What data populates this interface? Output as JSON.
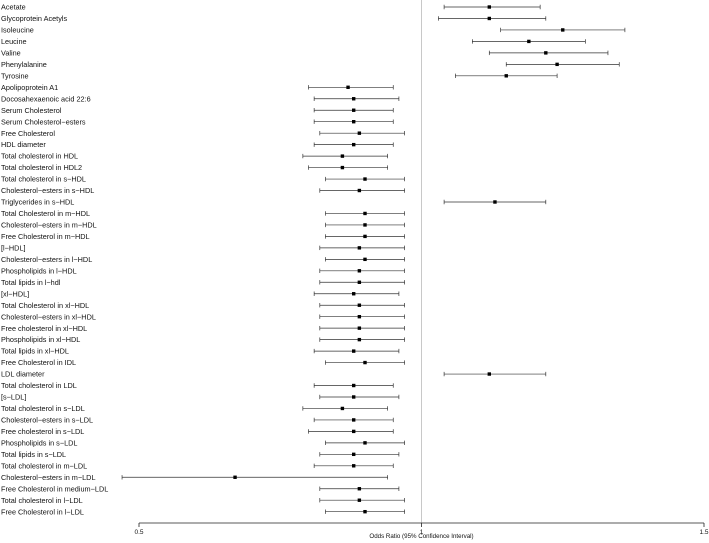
{
  "chart_data": {
    "type": "forest",
    "xlabel": "Odds Ratio (95% Confidence Interval)",
    "xlim": [
      0.5,
      1.5
    ],
    "xticks": [
      "0.5",
      "1",
      "1.5"
    ],
    "reference_line": 1,
    "rows": [
      {
        "label": "Acetate",
        "or": 1.12,
        "lo": 1.04,
        "hi": 1.21
      },
      {
        "label": "Glycoprotein Acetyls",
        "or": 1.12,
        "lo": 1.03,
        "hi": 1.22
      },
      {
        "label": "Isoleucine",
        "or": 1.25,
        "lo": 1.14,
        "hi": 1.36
      },
      {
        "label": "Leucine",
        "or": 1.19,
        "lo": 1.09,
        "hi": 1.29
      },
      {
        "label": "Valine",
        "or": 1.22,
        "lo": 1.12,
        "hi": 1.33
      },
      {
        "label": "Phenylalanine",
        "or": 1.24,
        "lo": 1.15,
        "hi": 1.35
      },
      {
        "label": "Tyrosine",
        "or": 1.15,
        "lo": 1.06,
        "hi": 1.24
      },
      {
        "label": "Apolipoprotein A1",
        "or": 0.87,
        "lo": 0.8,
        "hi": 0.95
      },
      {
        "label": "Docosahexaenoic acid 22:6",
        "or": 0.88,
        "lo": 0.81,
        "hi": 0.96
      },
      {
        "label": "Serum Cholesterol",
        "or": 0.88,
        "lo": 0.81,
        "hi": 0.95
      },
      {
        "label": "Serum Cholesterol−esters",
        "or": 0.88,
        "lo": 0.81,
        "hi": 0.95
      },
      {
        "label": "Free Cholesterol",
        "or": 0.89,
        "lo": 0.82,
        "hi": 0.97
      },
      {
        "label": "HDL diameter",
        "or": 0.88,
        "lo": 0.81,
        "hi": 0.95
      },
      {
        "label": "Total cholesterol in HDL",
        "or": 0.86,
        "lo": 0.79,
        "hi": 0.94
      },
      {
        "label": "Total cholesterol in HDL2",
        "or": 0.86,
        "lo": 0.8,
        "hi": 0.94
      },
      {
        "label": "Total cholesterol in s−HDL",
        "or": 0.9,
        "lo": 0.83,
        "hi": 0.97
      },
      {
        "label": "Cholesterol−esters in s−HDL",
        "or": 0.89,
        "lo": 0.82,
        "hi": 0.97
      },
      {
        "label": "Triglycerides in s−HDL",
        "or": 1.13,
        "lo": 1.04,
        "hi": 1.22
      },
      {
        "label": "Total Cholesterol in m−HDL",
        "or": 0.9,
        "lo": 0.83,
        "hi": 0.97
      },
      {
        "label": "Cholesterol−esters in m−HDL",
        "or": 0.9,
        "lo": 0.83,
        "hi": 0.97
      },
      {
        "label": "Free Cholesterol in m−HDL",
        "or": 0.9,
        "lo": 0.83,
        "hi": 0.97
      },
      {
        "label": "[l−HDL]",
        "or": 0.89,
        "lo": 0.82,
        "hi": 0.97
      },
      {
        "label": "Cholesterol−esters in l−HDL",
        "or": 0.9,
        "lo": 0.83,
        "hi": 0.97
      },
      {
        "label": "Phospholipids in l−HDL",
        "or": 0.89,
        "lo": 0.82,
        "hi": 0.97
      },
      {
        "label": "Total lipids in l−hdl",
        "or": 0.89,
        "lo": 0.82,
        "hi": 0.97
      },
      {
        "label": "[xl−HDL]",
        "or": 0.88,
        "lo": 0.81,
        "hi": 0.96
      },
      {
        "label": "Total Cholesterol in xl−HDL",
        "or": 0.89,
        "lo": 0.82,
        "hi": 0.97
      },
      {
        "label": "Cholesterol−esters in xl−HDL",
        "or": 0.89,
        "lo": 0.82,
        "hi": 0.97
      },
      {
        "label": "Free cholesterol in xl−HDL",
        "or": 0.89,
        "lo": 0.82,
        "hi": 0.97
      },
      {
        "label": "Phospholipids in xl−HDL",
        "or": 0.89,
        "lo": 0.82,
        "hi": 0.97
      },
      {
        "label": "Total lipids in xl−HDL",
        "or": 0.88,
        "lo": 0.81,
        "hi": 0.96
      },
      {
        "label": "Free Cholesterol in IDL",
        "or": 0.9,
        "lo": 0.83,
        "hi": 0.97
      },
      {
        "label": "LDL diameter",
        "or": 1.12,
        "lo": 1.04,
        "hi": 1.22
      },
      {
        "label": "Total cholesterol in LDL",
        "or": 0.88,
        "lo": 0.81,
        "hi": 0.95
      },
      {
        "label": "[s−LDL]",
        "or": 0.88,
        "lo": 0.82,
        "hi": 0.96
      },
      {
        "label": "Total cholesterol in s−LDL",
        "or": 0.86,
        "lo": 0.79,
        "hi": 0.94
      },
      {
        "label": "Cholesterol−esters in s−LDL",
        "or": 0.88,
        "lo": 0.81,
        "hi": 0.95
      },
      {
        "label": "Free cholesterol in s−LDL",
        "or": 0.88,
        "lo": 0.8,
        "hi": 0.95
      },
      {
        "label": "Phospholipids in s−LDL",
        "or": 0.9,
        "lo": 0.83,
        "hi": 0.97
      },
      {
        "label": "Total lipids in s−LDL",
        "or": 0.88,
        "lo": 0.82,
        "hi": 0.96
      },
      {
        "label": "Total cholesterol in m−LDL",
        "or": 0.88,
        "lo": 0.81,
        "hi": 0.95
      },
      {
        "label": "Cholesterol−esters in m−LDL",
        "or": 0.67,
        "lo": 0.47,
        "hi": 0.94
      },
      {
        "label": "Free Cholesterol in medium−LDL",
        "or": 0.89,
        "lo": 0.82,
        "hi": 0.96
      },
      {
        "label": "Total cholesterol in l−LDL",
        "or": 0.89,
        "lo": 0.82,
        "hi": 0.97
      },
      {
        "label": "Free Cholesterol in l−LDL",
        "or": 0.9,
        "lo": 0.83,
        "hi": 0.97
      }
    ]
  }
}
